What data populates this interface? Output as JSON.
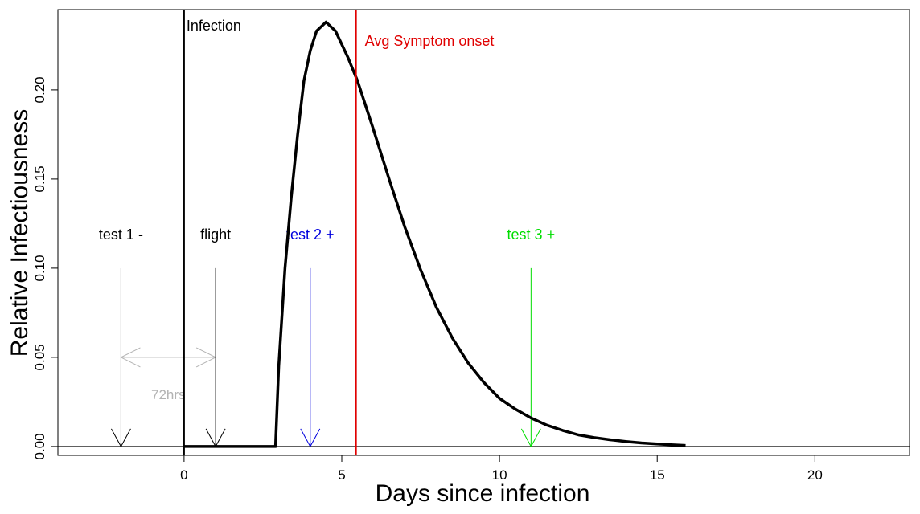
{
  "chart_data": {
    "type": "line",
    "title": "",
    "xlabel": "Days since infection",
    "ylabel": "Relative Infectiousness",
    "xlim": [
      -4,
      23
    ],
    "ylim": [
      -0.005,
      0.245
    ],
    "x_ticks": [
      "0",
      "5",
      "10",
      "15",
      "20"
    ],
    "y_ticks": [
      "0.00",
      "0.05",
      "0.10",
      "0.15",
      "0.20"
    ],
    "grid": false,
    "series": [
      {
        "x": [
          0,
          2.9,
          3.0,
          3.2,
          3.4,
          3.6,
          3.8,
          4.0,
          4.2,
          4.5,
          4.8,
          5.2,
          5.5,
          6.0,
          6.5,
          7.0,
          7.5,
          8.0,
          8.5,
          9.0,
          9.5,
          10.0,
          10.5,
          11.0,
          11.5,
          12.0,
          12.5,
          13.0,
          13.5,
          14.0,
          14.5,
          15.0,
          15.5,
          15.9
        ],
        "y": [
          0,
          0,
          0.045,
          0.1,
          0.14,
          0.175,
          0.205,
          0.222,
          0.233,
          0.238,
          0.233,
          0.218,
          0.205,
          0.178,
          0.15,
          0.123,
          0.099,
          0.078,
          0.061,
          0.047,
          0.036,
          0.027,
          0.021,
          0.016,
          0.012,
          0.009,
          0.0065,
          0.005,
          0.0038,
          0.0028,
          0.002,
          0.0014,
          0.0009,
          0.0006
        ],
        "color": "#000000"
      }
    ],
    "vertical_lines": [
      {
        "x": 0,
        "label": "Infection",
        "color": "#000000"
      },
      {
        "x": 5.45,
        "label": "Avg Symptom onset",
        "color": "#e00000"
      }
    ],
    "arrows": [
      {
        "x": -2,
        "label": "test 1 -",
        "color": "#000000"
      },
      {
        "x": 1,
        "label": "flight",
        "color": "#000000"
      },
      {
        "x": 4,
        "label": "test 2 +",
        "color": "#0000dd"
      },
      {
        "x": 11,
        "label": "test 3 +",
        "color": "#00dd00"
      }
    ],
    "interval": {
      "from": -2,
      "to": 1,
      "y": 0.05,
      "label": "72hrs",
      "color": "#b3b3b3"
    }
  }
}
